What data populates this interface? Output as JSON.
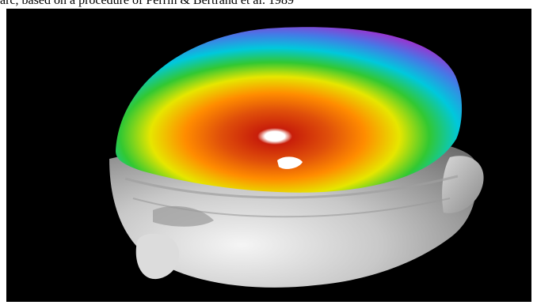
{
  "caption": {
    "text": "arc, based on a procedure of Perrin & Bertrand et al. 1989"
  },
  "image": {
    "subject": "3d-head-topographic-map",
    "colors": {
      "background": "#000000",
      "head": "#c8c8c8",
      "center": "#c81e0a",
      "orange": "#ff8c00",
      "yellow": "#e6e600",
      "green": "#32c832",
      "cyan": "#00c8dc",
      "blue": "#4678e6",
      "magenta": "#b41ec8",
      "hotspot": "#ffffff"
    }
  }
}
